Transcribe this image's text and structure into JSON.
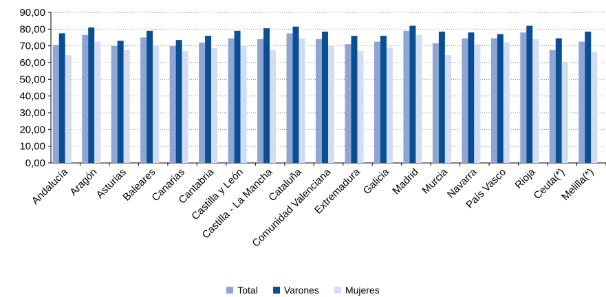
{
  "chart_data": {
    "type": "bar",
    "categories": [
      "Andalucía",
      "Aragón",
      "Asturias",
      "Baleares",
      "Canarias",
      "Cantabria",
      "Castilla y León",
      "Castilla - La Mancha",
      "Cataluña",
      "Comunidad Valenciana",
      "Extremadura",
      "Galicia",
      "Madrid",
      "Murcia",
      "Navarra",
      "País Vasco",
      "Rioja",
      "Ceuta(*)",
      "Melilla(*)"
    ],
    "series": [
      {
        "name": "Total",
        "color": "#8fa6d3",
        "values": [
          70.5,
          76.5,
          70.0,
          75.0,
          70.0,
          72.0,
          74.5,
          74.0,
          77.5,
          74.0,
          71.0,
          72.5,
          79.0,
          71.5,
          74.5,
          74.5,
          78.0,
          67.5,
          72.5
        ]
      },
      {
        "name": "Varones",
        "color": "#0a4e96",
        "values": [
          77.5,
          81.0,
          73.0,
          79.0,
          73.5,
          76.0,
          79.0,
          80.5,
          81.5,
          78.5,
          76.0,
          76.0,
          82.0,
          78.5,
          78.0,
          77.0,
          82.0,
          74.5,
          78.5
        ]
      },
      {
        "name": "Mujeres",
        "color": "#d3ddf2",
        "values": [
          64.5,
          72.5,
          67.5,
          70.5,
          67.0,
          68.5,
          70.0,
          67.5,
          74.5,
          70.0,
          67.0,
          69.0,
          76.5,
          64.5,
          71.0,
          72.0,
          74.0,
          60.5,
          66.5
        ]
      }
    ],
    "y_ticks": [
      "0,00",
      "10,00",
      "20,00",
      "30,00",
      "40,00",
      "50,00",
      "60,00",
      "70,00",
      "80,00",
      "90,00"
    ],
    "ylim": [
      0,
      90
    ],
    "grid": true,
    "legend_position": "bottom"
  }
}
